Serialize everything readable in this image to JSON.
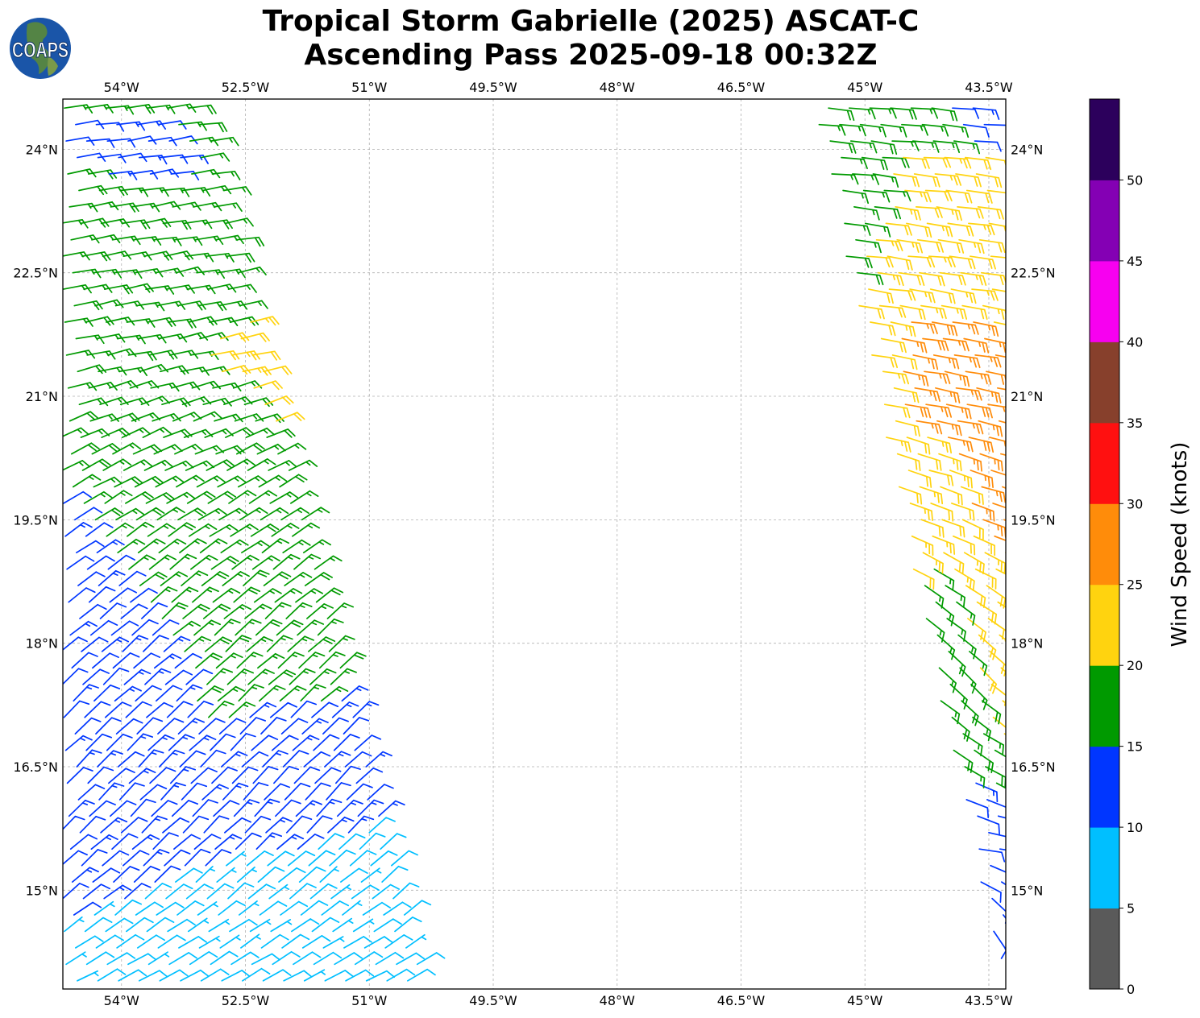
{
  "title": {
    "line1": "Tropical Storm Gabrielle (2025) ASCAT-C",
    "line2": "Ascending Pass 2025-09-18 00:32Z"
  },
  "logo": {
    "text": "COAPS"
  },
  "map": {
    "lon_range": [
      -54.71,
      -43.295
    ],
    "lat_range": [
      13.8,
      24.61
    ],
    "lon_ticks": [
      {
        "v": -54,
        "label": "54°W"
      },
      {
        "v": -52.5,
        "label": "52.5°W"
      },
      {
        "v": -51,
        "label": "51°W"
      },
      {
        "v": -49.5,
        "label": "49.5°W"
      },
      {
        "v": -48,
        "label": "48°W"
      },
      {
        "v": -46.5,
        "label": "46.5°W"
      },
      {
        "v": -45,
        "label": "45°W"
      },
      {
        "v": -43.5,
        "label": "43.5°W"
      }
    ],
    "lat_ticks": [
      {
        "v": 24,
        "label": "24°N"
      },
      {
        "v": 22.5,
        "label": "22.5°N"
      },
      {
        "v": 21,
        "label": "21°N"
      },
      {
        "v": 19.5,
        "label": "19.5°N"
      },
      {
        "v": 18,
        "label": "18°N"
      },
      {
        "v": 16.5,
        "label": "16.5°N"
      },
      {
        "v": 15,
        "label": "15°N"
      }
    ]
  },
  "wind_field": {
    "grid_step_lon": 0.25,
    "grid_step_lat": 0.2,
    "swaths": [
      {
        "name": "west",
        "polygon": [
          [
            -54.75,
            24.65
          ],
          [
            -53.05,
            24.65
          ],
          [
            -50.3,
            13.78
          ],
          [
            -54.75,
            13.78
          ]
        ],
        "default_speed": 17,
        "direction_by_lat": [
          [
            24.6,
            82
          ],
          [
            21.5,
            78
          ],
          [
            20,
            62
          ],
          [
            18.5,
            50
          ],
          [
            16,
            45
          ],
          [
            15,
            50
          ],
          [
            13.8,
            62
          ]
        ],
        "zones": [
          {
            "speed": 12,
            "polygon": [
              [
                -54.75,
                24.35
              ],
              [
                -53.4,
                24.4
              ],
              [
                -53.1,
                23.5
              ],
              [
                -54.75,
                23.8
              ]
            ]
          },
          {
            "speed": 12,
            "polygon": [
              [
                -54.75,
                20.0
              ],
              [
                -52.9,
                17.0
              ],
              [
                -51.1,
                17.4
              ],
              [
                -50.2,
                15.0
              ],
              [
                -50.2,
                13.7
              ],
              [
                -54.75,
                13.7
              ]
            ]
          },
          {
            "speed": 8,
            "polygon": [
              [
                -54.75,
                14.5
              ],
              [
                -53.2,
                15.25
              ],
              [
                -51.5,
                15.55
              ],
              [
                -50.6,
                15.9
              ],
              [
                -50.2,
                15.9
              ],
              [
                -50.2,
                13.7
              ],
              [
                -54.75,
                13.7
              ]
            ]
          },
          {
            "speed": 22,
            "polygon": [
              [
                -53.0,
                21.6
              ],
              [
                -52.35,
                21.95
              ],
              [
                -51.85,
                21.0
              ],
              [
                -52.0,
                20.4
              ],
              [
                -52.5,
                20.9
              ]
            ]
          }
        ]
      },
      {
        "name": "east",
        "polygon": [
          [
            -45.65,
            24.65
          ],
          [
            -43.2,
            24.65
          ],
          [
            -43.2,
            13.78
          ],
          [
            -43.3,
            13.78
          ],
          [
            -43.38,
            14.0
          ]
        ],
        "default_speed": 17,
        "direction_by_lat": [
          [
            24.6,
            95
          ],
          [
            21,
            100
          ],
          [
            19.2,
            115
          ],
          [
            17.8,
            135
          ],
          [
            16.6,
            120
          ],
          [
            15.5,
            100
          ],
          [
            14.5,
            150
          ],
          [
            13.8,
            175
          ]
        ],
        "zones": [
          {
            "speed": 12,
            "polygon": [
              [
                -44.05,
                24.7
              ],
              [
                -43.2,
                24.7
              ],
              [
                -43.2,
                23.2
              ],
              [
                -43.6,
                23.6
              ]
            ]
          },
          {
            "speed": 22,
            "polygon": [
              [
                -44.6,
                23.9
              ],
              [
                -43.2,
                23.9
              ],
              [
                -43.2,
                16.9
              ],
              [
                -43.9,
                16.7
              ],
              [
                -44.5,
                19.0
              ],
              [
                -44.95,
                21.4
              ],
              [
                -45.15,
                22.3
              ]
            ]
          },
          {
            "speed": 27,
            "polygon": [
              [
                -44.55,
                21.95
              ],
              [
                -43.8,
                22.05
              ],
              [
                -43.2,
                21.5
              ],
              [
                -43.2,
                19.0
              ],
              [
                -43.6,
                19.5
              ],
              [
                -44.1,
                20.4
              ],
              [
                -44.65,
                20.95
              ]
            ]
          },
          {
            "speed": 17,
            "polygon": [
              [
                -44.35,
                18.95
              ],
              [
                -43.95,
                18.9
              ],
              [
                -43.6,
                17.4
              ],
              [
                -43.3,
                16.7
              ],
              [
                -43.2,
                16.7
              ],
              [
                -43.2,
                15.3
              ],
              [
                -43.5,
                16.3
              ],
              [
                -43.95,
                16.6
              ],
              [
                -44.25,
                18.0
              ]
            ]
          },
          {
            "speed": 12,
            "polygon": [
              [
                -44.2,
                16.55
              ],
              [
                -43.2,
                16.2
              ],
              [
                -43.2,
                13.7
              ],
              [
                -44.2,
                13.7
              ]
            ]
          }
        ]
      }
    ]
  },
  "colorbar": {
    "label": "Wind Speed (knots)",
    "bounds": [
      0,
      55
    ],
    "bins": [
      {
        "min": 0,
        "max": 5,
        "color": "#5a5a5a"
      },
      {
        "min": 5,
        "max": 10,
        "color": "#00bfff"
      },
      {
        "min": 10,
        "max": 15,
        "color": "#0036ff"
      },
      {
        "min": 15,
        "max": 20,
        "color": "#009a00"
      },
      {
        "min": 20,
        "max": 25,
        "color": "#ffd30f"
      },
      {
        "min": 25,
        "max": 30,
        "color": "#ff8c0a"
      },
      {
        "min": 30,
        "max": 35,
        "color": "#ff1010"
      },
      {
        "min": 35,
        "max": 40,
        "color": "#87402c"
      },
      {
        "min": 40,
        "max": 45,
        "color": "#f700f0"
      },
      {
        "min": 45,
        "max": 50,
        "color": "#8400b4"
      },
      {
        "min": 50,
        "max": 55,
        "color": "#2c005c"
      }
    ],
    "ticks": [
      "0",
      "5",
      "10",
      "15",
      "20",
      "25",
      "30",
      "35",
      "40",
      "45",
      "50"
    ]
  }
}
